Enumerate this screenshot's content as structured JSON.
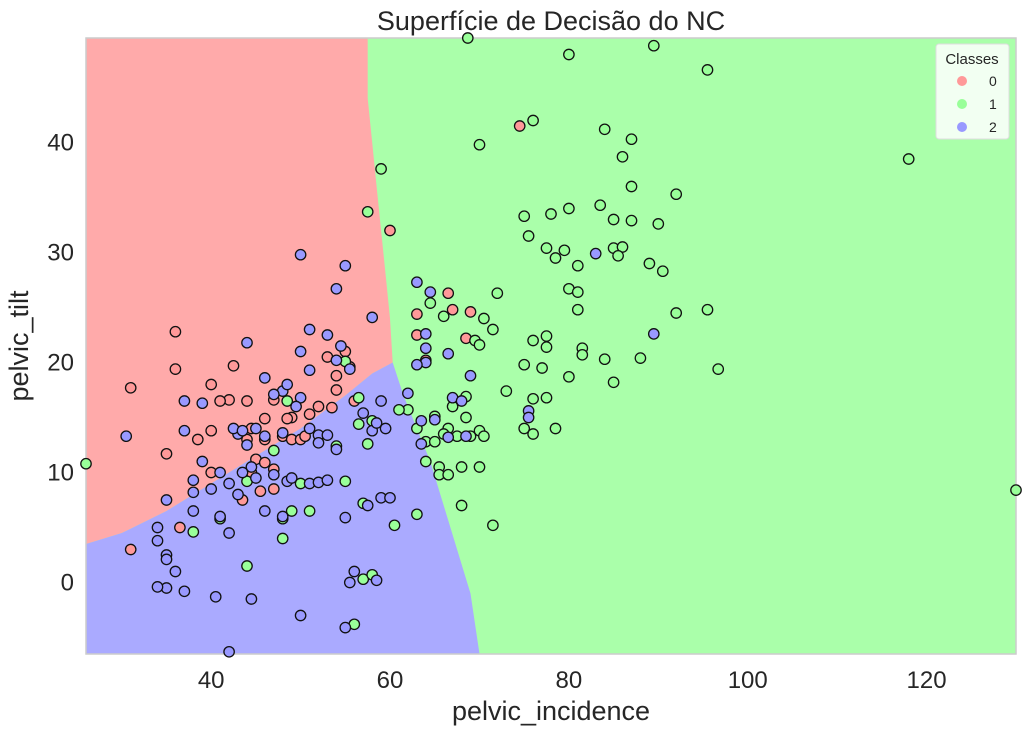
{
  "chart_data": {
    "type": "scatter",
    "title": "Superfície de Decisão do NC",
    "xlabel": "pelvic_incidence",
    "ylabel": "pelvic_tilt",
    "xlim": [
      26,
      130
    ],
    "ylim": [
      -6.5,
      49.5
    ],
    "x_ticks": [
      40,
      60,
      80,
      100,
      120
    ],
    "y_ticks": [
      0,
      10,
      20,
      30,
      40
    ],
    "grid": false,
    "legend": {
      "title": "Classes",
      "placement": "top-right",
      "entries": [
        {
          "label": "0",
          "color": "#ff9999"
        },
        {
          "label": "1",
          "color": "#99ff99"
        },
        {
          "label": "2",
          "color": "#9999ff"
        }
      ]
    },
    "region_colors": {
      "0": "#ffaaaa",
      "1": "#aaffaa",
      "2": "#aaaaff"
    },
    "decision_regions": {
      "boundary_0_1": [
        [
          26,
          49.5
        ],
        [
          57.5,
          49.5
        ],
        [
          57.5,
          44
        ],
        [
          58,
          40
        ],
        [
          58.5,
          36
        ],
        [
          59,
          32
        ],
        [
          59.5,
          28
        ],
        [
          60,
          24
        ],
        [
          60.3,
          20
        ]
      ],
      "boundary_0_2": [
        [
          26,
          3.5
        ],
        [
          30,
          4.5
        ],
        [
          35,
          6.5
        ],
        [
          40,
          9
        ],
        [
          45,
          11.5
        ],
        [
          50,
          14
        ],
        [
          55,
          17
        ],
        [
          58,
          19
        ],
        [
          60.3,
          20
        ]
      ],
      "boundary_2_1": [
        [
          60.3,
          20
        ],
        [
          61.5,
          17
        ],
        [
          63,
          14
        ],
        [
          64.5,
          11
        ],
        [
          66,
          7
        ],
        [
          67.5,
          3
        ],
        [
          69,
          -1
        ],
        [
          70,
          -6.5
        ]
      ]
    },
    "series": [
      {
        "class": "0",
        "color": "#ff9999",
        "points": [
          [
            74.5,
            41.5
          ],
          [
            60,
            32
          ],
          [
            66.5,
            26.3
          ],
          [
            63,
            24.4
          ],
          [
            67,
            24.8
          ],
          [
            69,
            24.6
          ],
          [
            68.5,
            22.2
          ],
          [
            63,
            22.5
          ],
          [
            64,
            20.2
          ],
          [
            55.5,
            19.6
          ],
          [
            54,
            18.8
          ],
          [
            53,
            20.5
          ],
          [
            55,
            21
          ],
          [
            56,
            16.5
          ],
          [
            53.5,
            15.9
          ],
          [
            51,
            15.3
          ],
          [
            47,
            16.6
          ],
          [
            44,
            16.5
          ],
          [
            42,
            16.6
          ],
          [
            40,
            18
          ],
          [
            44,
            13
          ],
          [
            46,
            13
          ],
          [
            48,
            13.3
          ],
          [
            49,
            13
          ],
          [
            50,
            13
          ],
          [
            49,
            15
          ],
          [
            45,
            11.2
          ],
          [
            46,
            10.9
          ],
          [
            47,
            10.3
          ],
          [
            44.5,
            10
          ],
          [
            40,
            10
          ],
          [
            45.5,
            8.3
          ],
          [
            47,
            8.5
          ],
          [
            43.5,
            7.5
          ],
          [
            36.5,
            5
          ],
          [
            31,
            3
          ],
          [
            36,
            19.4
          ],
          [
            31,
            17.7
          ],
          [
            36,
            22.8
          ],
          [
            35,
            11.7
          ],
          [
            38.5,
            13
          ],
          [
            40,
            13.8
          ],
          [
            41,
            16.5
          ],
          [
            42.5,
            19.7
          ],
          [
            44.5,
            14
          ],
          [
            46,
            14.9
          ],
          [
            48.5,
            14.9
          ],
          [
            50.5,
            13.3
          ],
          [
            52,
            16
          ],
          [
            54,
            17.5
          ]
        ]
      },
      {
        "class": "1",
        "color": "#99ff99",
        "points": [
          [
            68.7,
            49.5
          ],
          [
            80,
            48
          ],
          [
            89.5,
            48.8
          ],
          [
            95.5,
            46.6
          ],
          [
            76,
            42
          ],
          [
            84,
            41.2
          ],
          [
            87,
            40.3
          ],
          [
            70,
            39.8
          ],
          [
            86,
            38.7
          ],
          [
            59,
            37.6
          ],
          [
            118,
            38.5
          ],
          [
            87,
            36
          ],
          [
            92,
            35.3
          ],
          [
            57.5,
            33.7
          ],
          [
            75,
            33.3
          ],
          [
            78,
            33.5
          ],
          [
            80,
            34
          ],
          [
            83.5,
            34.3
          ],
          [
            85,
            33
          ],
          [
            87,
            32.9
          ],
          [
            90,
            32.6
          ],
          [
            75.5,
            31.5
          ],
          [
            77.5,
            30.4
          ],
          [
            79.5,
            30.2
          ],
          [
            78.5,
            29.5
          ],
          [
            81,
            28.8
          ],
          [
            85,
            30.4
          ],
          [
            86,
            30.5
          ],
          [
            85.5,
            29.7
          ],
          [
            89,
            29
          ],
          [
            90.5,
            28.3
          ],
          [
            80,
            26.7
          ],
          [
            81,
            26.4
          ],
          [
            72,
            26.3
          ],
          [
            64.5,
            25.4
          ],
          [
            66,
            24.2
          ],
          [
            81,
            24.8
          ],
          [
            92,
            24.5
          ],
          [
            95.5,
            24.8
          ],
          [
            70.5,
            24
          ],
          [
            71.5,
            23
          ],
          [
            69.5,
            22
          ],
          [
            70,
            21.6
          ],
          [
            76,
            22
          ],
          [
            77.5,
            22.4
          ],
          [
            77.5,
            21.4
          ],
          [
            81.5,
            21.3
          ],
          [
            81.5,
            20.7
          ],
          [
            88,
            20.4
          ],
          [
            84,
            20.3
          ],
          [
            85,
            18.2
          ],
          [
            96.7,
            19.4
          ],
          [
            80,
            18.7
          ],
          [
            73,
            17.4
          ],
          [
            75,
            19.8
          ],
          [
            77,
            19.5
          ],
          [
            76,
            16.7
          ],
          [
            77.5,
            16.8
          ],
          [
            68.5,
            16.9
          ],
          [
            67,
            16
          ],
          [
            65,
            15.1
          ],
          [
            66.5,
            14
          ],
          [
            68.5,
            15
          ],
          [
            67.5,
            13.3
          ],
          [
            69,
            13.3
          ],
          [
            70,
            13.8
          ],
          [
            70.5,
            13.3
          ],
          [
            75,
            14
          ],
          [
            76,
            13.5
          ],
          [
            78.5,
            14
          ],
          [
            63,
            14
          ],
          [
            64,
            12.8
          ],
          [
            65,
            12.8
          ],
          [
            66,
            13.5
          ],
          [
            64,
            11
          ],
          [
            65.5,
            10.5
          ],
          [
            65.5,
            9.8
          ],
          [
            66.5,
            9.8
          ],
          [
            68,
            10.5
          ],
          [
            70,
            10.5
          ],
          [
            68,
            7
          ],
          [
            71.5,
            5.2
          ],
          [
            63,
            6.2
          ],
          [
            60.5,
            5.2
          ],
          [
            57,
            7.2
          ],
          [
            55,
            9.2
          ],
          [
            50,
            9
          ],
          [
            51,
            6.5
          ],
          [
            49,
            6.5
          ],
          [
            48,
            5.8
          ],
          [
            48,
            4
          ],
          [
            38,
            4.6
          ],
          [
            41,
            5.8
          ],
          [
            44,
            1.5
          ],
          [
            56,
            -3.8
          ],
          [
            57,
            0.3
          ],
          [
            58,
            0.7
          ],
          [
            58,
            14.7
          ],
          [
            56.5,
            14.4
          ],
          [
            57.5,
            12.6
          ],
          [
            54,
            12.4
          ],
          [
            55,
            20.1
          ],
          [
            56.5,
            16.8
          ],
          [
            48.5,
            16.5
          ],
          [
            47,
            12
          ],
          [
            44,
            9.2
          ],
          [
            62,
            15.7
          ],
          [
            61,
            15.7
          ],
          [
            130,
            8.4
          ],
          [
            26,
            10.8
          ]
        ]
      },
      {
        "class": "2",
        "color": "#9999ff",
        "points": [
          [
            63,
            27.3
          ],
          [
            64.5,
            26.4
          ],
          [
            64,
            22.6
          ],
          [
            64,
            21.3
          ],
          [
            64,
            20
          ],
          [
            66.5,
            20.8
          ],
          [
            69,
            18.8
          ],
          [
            63,
            19.8
          ],
          [
            62,
            17.2
          ],
          [
            67,
            16.8
          ],
          [
            68,
            16.5
          ],
          [
            66.5,
            13.2
          ],
          [
            68.5,
            13.3
          ],
          [
            63.5,
            12.6
          ],
          [
            63.5,
            14.7
          ],
          [
            65,
            14.8
          ],
          [
            75.5,
            15.6
          ],
          [
            75.5,
            15
          ],
          [
            83,
            29.9
          ],
          [
            89.5,
            22.6
          ],
          [
            54.5,
            21.5
          ],
          [
            54,
            20.2
          ],
          [
            50,
            16.8
          ],
          [
            48,
            17.4
          ],
          [
            48.5,
            18
          ],
          [
            47,
            17.1
          ],
          [
            46,
            18.6
          ],
          [
            44,
            21.8
          ],
          [
            45,
            14
          ],
          [
            43,
            13.5
          ],
          [
            44,
            12.5
          ],
          [
            43.5,
            10
          ],
          [
            42,
            9
          ],
          [
            41,
            10
          ],
          [
            40,
            8.5
          ],
          [
            39,
            11
          ],
          [
            38,
            9.3
          ],
          [
            38,
            8.2
          ],
          [
            38,
            6.5
          ],
          [
            35,
            7.5
          ],
          [
            34,
            5
          ],
          [
            34,
            3.8
          ],
          [
            35,
            2.5
          ],
          [
            35,
            2.1
          ],
          [
            36,
            1
          ],
          [
            35,
            -0.5
          ],
          [
            37,
            -0.8
          ],
          [
            40.5,
            -1.3
          ],
          [
            42,
            -6.3
          ],
          [
            50,
            -3
          ],
          [
            55,
            -4.1
          ],
          [
            34,
            -0.4
          ],
          [
            30.5,
            13.3
          ],
          [
            37,
            13.8
          ],
          [
            37,
            16.5
          ],
          [
            39,
            16.3
          ],
          [
            42.5,
            14
          ],
          [
            43.5,
            13.8
          ],
          [
            46,
            13.3
          ],
          [
            48,
            13.6
          ],
          [
            52,
            13.4
          ],
          [
            51,
            14
          ],
          [
            53,
            13.4
          ],
          [
            54,
            12.1
          ],
          [
            51,
            9
          ],
          [
            48.5,
            9.2
          ],
          [
            52,
            9.1
          ],
          [
            53,
            9.3
          ],
          [
            52,
            12.7
          ],
          [
            58,
            13.8
          ],
          [
            58.5,
            14.5
          ],
          [
            59.5,
            14
          ],
          [
            57,
            15.4
          ],
          [
            59,
            16.5
          ],
          [
            55.5,
            19.4
          ],
          [
            58,
            24.1
          ],
          [
            55,
            28.8
          ],
          [
            54,
            26.7
          ],
          [
            53,
            22.5
          ],
          [
            51,
            23
          ],
          [
            50,
            29.8
          ],
          [
            50,
            21
          ],
          [
            51,
            19.3
          ],
          [
            49.5,
            16
          ],
          [
            47,
            9.8
          ],
          [
            44.5,
            10.5
          ],
          [
            46,
            6.5
          ],
          [
            45,
            9.5
          ],
          [
            43,
            8
          ],
          [
            41,
            6
          ],
          [
            42,
            4.5
          ],
          [
            48,
            6
          ],
          [
            49,
            9.5
          ],
          [
            59,
            7.7
          ],
          [
            60,
            7.7
          ],
          [
            55,
            5.9
          ],
          [
            57.5,
            7
          ],
          [
            55.5,
            0
          ],
          [
            58.5,
            0.2
          ],
          [
            56,
            1
          ],
          [
            44.5,
            -1.5
          ]
        ]
      }
    ]
  }
}
